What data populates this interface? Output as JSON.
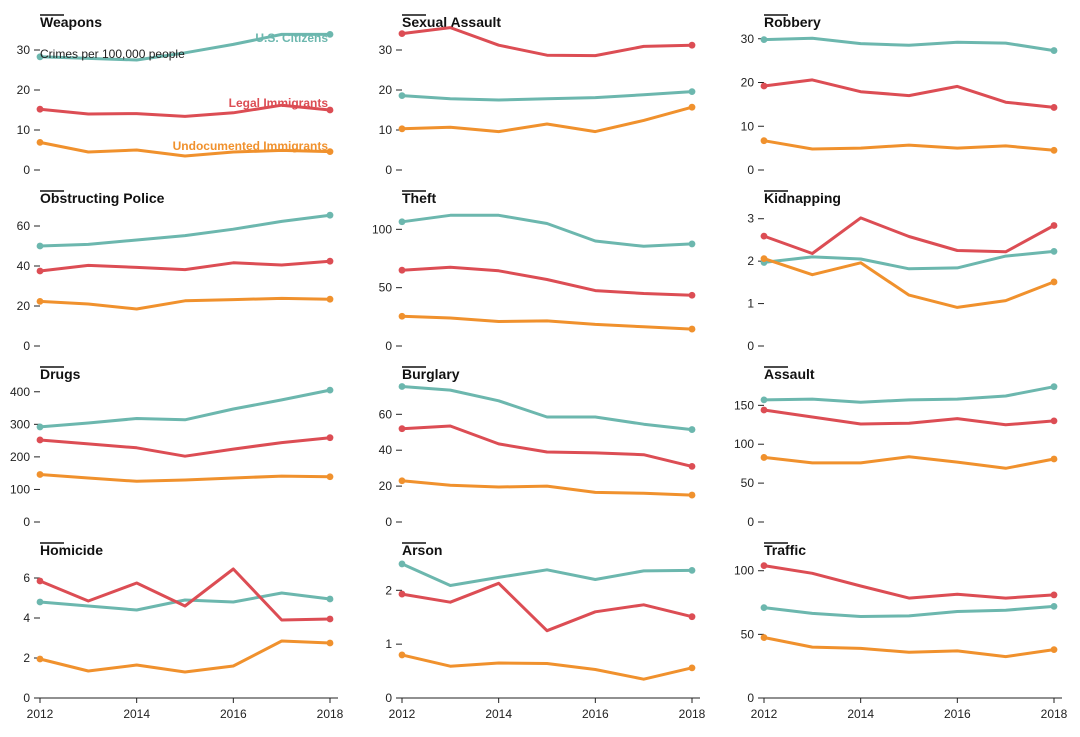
{
  "chart_data": {
    "type": "line",
    "years": [
      2012,
      2013,
      2014,
      2015,
      2016,
      2017,
      2018
    ],
    "x_ticks": [
      2012,
      2014,
      2016,
      2018
    ],
    "y_unit_note": "Crimes per 100,000 people",
    "series_names": [
      "U.S. Citizens",
      "Legal Immigrants",
      "Undocumented Immigrants"
    ],
    "colors": {
      "citizens": "#6cb7ae",
      "legal": "#dc4d54",
      "undocumented": "#f0912d"
    },
    "panels": [
      {
        "title": "Weapons",
        "ylim": [
          0,
          35
        ],
        "ticks": [
          0,
          10,
          20,
          30
        ],
        "citizens": [
          28.3,
          27.9,
          27.5,
          29.3,
          31.4,
          33.9,
          33.9
        ],
        "legal": [
          15.2,
          14.0,
          14.1,
          13.4,
          14.3,
          16.2,
          15.0
        ],
        "undocumented": [
          6.9,
          4.5,
          5.0,
          3.5,
          4.5,
          4.9,
          4.6
        ]
      },
      {
        "title": "Sexual Assault",
        "ylim": [
          0,
          35
        ],
        "ticks": [
          0,
          10,
          20,
          30
        ],
        "citizens": [
          18.6,
          17.8,
          17.5,
          17.8,
          18.1,
          18.8,
          19.6
        ],
        "legal": [
          34.1,
          35.6,
          31.2,
          28.7,
          28.6,
          30.9,
          31.2
        ],
        "undocumented": [
          10.3,
          10.7,
          9.6,
          11.5,
          9.6,
          12.4,
          15.7
        ]
      },
      {
        "title": "Robbery",
        "ylim": [
          0,
          32
        ],
        "ticks": [
          0,
          10,
          20,
          30
        ],
        "citizens": [
          29.8,
          30.1,
          28.9,
          28.5,
          29.2,
          29.0,
          27.3
        ],
        "legal": [
          19.2,
          20.6,
          17.9,
          17.0,
          19.1,
          15.5,
          14.3
        ],
        "undocumented": [
          6.7,
          4.8,
          5.0,
          5.7,
          5.0,
          5.5,
          4.5
        ]
      },
      {
        "title": "Obstructing Police",
        "ylim": [
          0,
          70
        ],
        "ticks": [
          0,
          20,
          40,
          60
        ],
        "citizens": [
          50.0,
          50.8,
          53.0,
          55.2,
          58.4,
          62.3,
          65.4
        ],
        "legal": [
          37.5,
          40.3,
          39.3,
          38.2,
          41.6,
          40.5,
          42.4
        ],
        "undocumented": [
          22.3,
          21.0,
          18.5,
          22.6,
          23.2,
          23.8,
          23.4
        ]
      },
      {
        "title": "Theft",
        "ylim": [
          0,
          120
        ],
        "ticks": [
          0,
          50,
          100
        ],
        "citizens": [
          106.5,
          112.0,
          112.0,
          105.0,
          90.0,
          85.5,
          87.5
        ],
        "legal": [
          65.0,
          67.5,
          64.5,
          57.0,
          47.5,
          45.0,
          43.5
        ],
        "undocumented": [
          25.5,
          24.0,
          21.0,
          21.5,
          18.5,
          16.5,
          14.5
        ]
      },
      {
        "title": "Kidnapping",
        "ylim": [
          0,
          3.3
        ],
        "ticks": [
          0,
          1,
          2,
          3
        ],
        "citizens": [
          1.97,
          2.1,
          2.05,
          1.82,
          1.84,
          2.12,
          2.23
        ],
        "legal": [
          2.59,
          2.18,
          3.02,
          2.58,
          2.25,
          2.22,
          2.84
        ],
        "undocumented": [
          2.06,
          1.68,
          1.96,
          1.2,
          0.91,
          1.07,
          1.51
        ]
      },
      {
        "title": "Drugs",
        "ylim": [
          0,
          430
        ],
        "ticks": [
          0,
          100,
          200,
          300,
          400
        ],
        "citizens": [
          292,
          304,
          318,
          314,
          347,
          375,
          405
        ],
        "legal": [
          252,
          240,
          228,
          202,
          224,
          244,
          259
        ],
        "undocumented": [
          146,
          135,
          125,
          129,
          135,
          141,
          139
        ]
      },
      {
        "title": "Burglary",
        "ylim": [
          0,
          78
        ],
        "ticks": [
          0,
          20,
          40,
          60
        ],
        "citizens": [
          75.5,
          73.5,
          67.5,
          58.5,
          58.5,
          54.5,
          51.5
        ],
        "legal": [
          52.0,
          53.5,
          43.5,
          39.0,
          38.5,
          37.5,
          31.0
        ],
        "undocumented": [
          23.0,
          20.5,
          19.5,
          20.0,
          16.5,
          16.0,
          15.0
        ]
      },
      {
        "title": "Assault",
        "ylim": [
          0,
          180
        ],
        "ticks": [
          0,
          50,
          100,
          150
        ],
        "citizens": [
          157,
          158,
          154,
          157,
          158,
          162,
          174
        ],
        "legal": [
          144,
          135,
          126,
          127,
          133,
          125,
          130
        ],
        "undocumented": [
          83,
          76,
          76,
          84,
          77,
          69,
          81
        ]
      },
      {
        "title": "Homicide",
        "ylim": [
          0,
          7
        ],
        "ticks": [
          0,
          2,
          4,
          6
        ],
        "citizens": [
          4.8,
          4.6,
          4.4,
          4.9,
          4.8,
          5.25,
          4.95
        ],
        "legal": [
          5.85,
          4.85,
          5.75,
          4.6,
          6.45,
          3.9,
          3.95
        ],
        "undocumented": [
          1.95,
          1.35,
          1.65,
          1.3,
          1.6,
          2.85,
          2.75
        ]
      },
      {
        "title": "Arson",
        "ylim": [
          0,
          2.6
        ],
        "ticks": [
          0,
          1,
          2
        ],
        "citizens": [
          2.49,
          2.09,
          2.24,
          2.38,
          2.2,
          2.36,
          2.37
        ],
        "legal": [
          1.93,
          1.78,
          2.13,
          1.25,
          1.6,
          1.73,
          1.51
        ],
        "undocumented": [
          0.8,
          0.59,
          0.65,
          0.64,
          0.53,
          0.35,
          0.56
        ]
      },
      {
        "title": "Traffic",
        "ylim": [
          0,
          110
        ],
        "ticks": [
          0,
          50,
          100
        ],
        "citizens": [
          71.0,
          66.5,
          64.0,
          64.5,
          68.0,
          69.0,
          72.0
        ],
        "legal": [
          104.0,
          98.0,
          88.0,
          78.5,
          81.5,
          78.5,
          81.0
        ],
        "undocumented": [
          47.5,
          40.0,
          39.0,
          36.0,
          37.0,
          32.5,
          38.0
        ]
      }
    ]
  }
}
